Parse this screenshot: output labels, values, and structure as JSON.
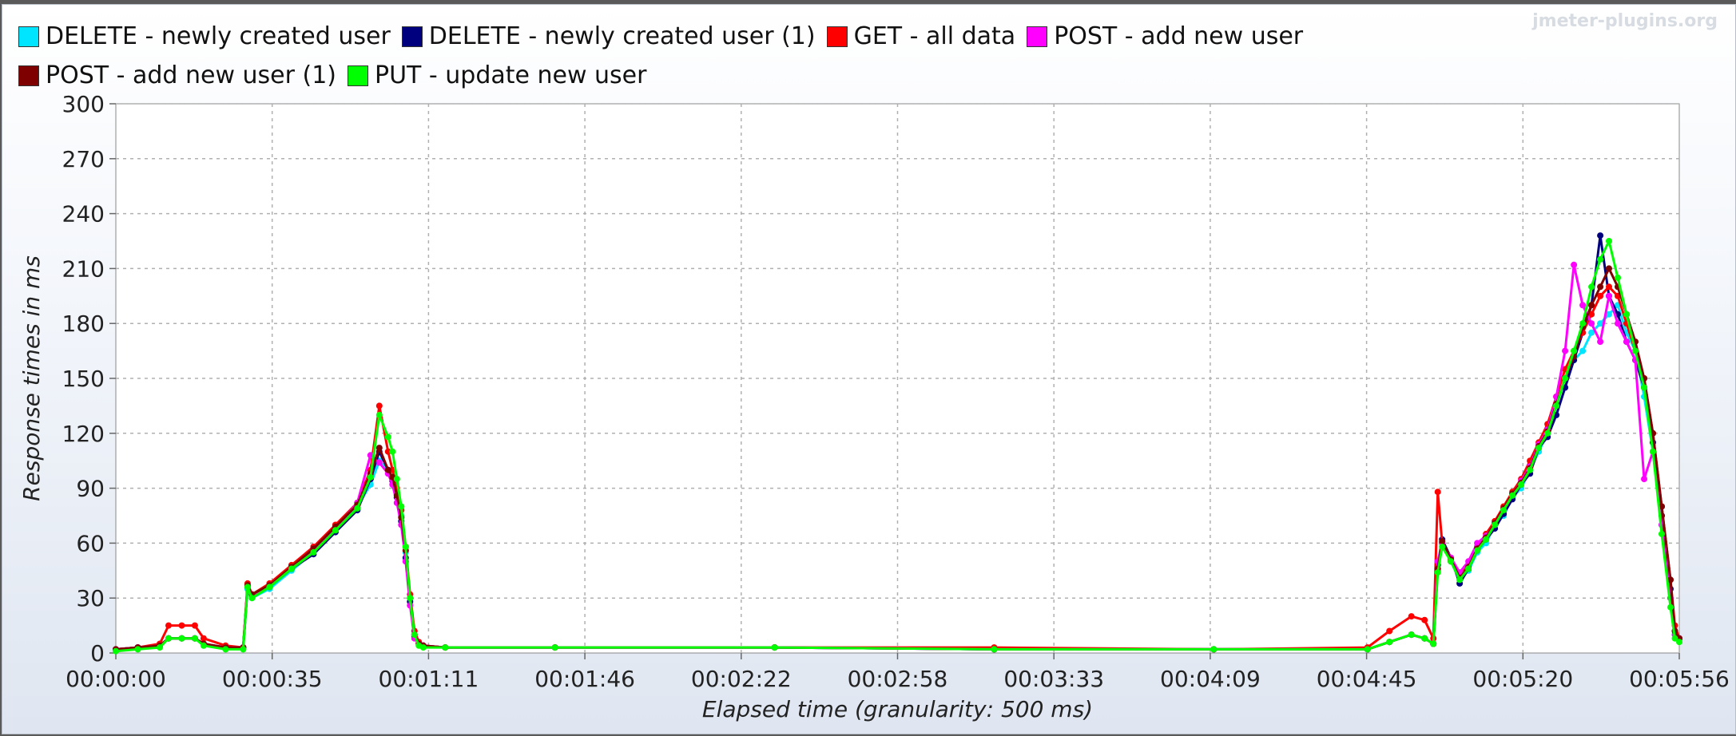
{
  "watermark": "jmeter-plugins.org",
  "chart_data": {
    "type": "line",
    "xlabel": "Elapsed time (granularity: 500 ms)",
    "ylabel": "Response times in ms",
    "x_unit": "seconds elapsed",
    "xlim": [
      0,
      356
    ],
    "ylim": [
      0,
      300
    ],
    "y_ticks": [
      0,
      30,
      60,
      90,
      120,
      150,
      180,
      210,
      240,
      270,
      300
    ],
    "x_ticks": [
      {
        "label": "00:00:00",
        "value": 0
      },
      {
        "label": "00:00:35",
        "value": 35.6
      },
      {
        "label": "00:01:11",
        "value": 71.2
      },
      {
        "label": "00:01:46",
        "value": 106.8
      },
      {
        "label": "00:02:22",
        "value": 142.4
      },
      {
        "label": "00:02:58",
        "value": 178
      },
      {
        "label": "00:03:33",
        "value": 213.6
      },
      {
        "label": "00:04:09",
        "value": 249.2
      },
      {
        "label": "00:04:45",
        "value": 284.8
      },
      {
        "label": "00:05:20",
        "value": 320.4
      },
      {
        "label": "00:05:56",
        "value": 356
      }
    ],
    "grid": true,
    "legend_position": "top",
    "series": [
      {
        "name": "DELETE - newly created user",
        "color": "#00e5ff",
        "x": [
          0,
          5,
          10,
          12,
          15,
          18,
          20,
          25,
          29,
          30,
          31,
          35,
          40,
          45,
          50,
          55,
          58,
          60,
          62,
          63,
          64,
          65,
          66,
          67,
          68,
          69,
          70,
          75,
          100,
          150,
          200,
          250,
          285,
          290,
          295,
          298,
          300,
          301,
          302,
          304,
          306,
          308,
          310,
          312,
          314,
          316,
          318,
          320,
          322,
          324,
          326,
          328,
          330,
          332,
          334,
          336,
          338,
          340,
          342,
          344,
          346,
          348,
          350,
          352,
          354,
          355,
          356
        ],
        "y": [
          2,
          3,
          4,
          8,
          8,
          8,
          5,
          3,
          3,
          35,
          30,
          35,
          45,
          55,
          68,
          80,
          92,
          105,
          100,
          95,
          85,
          75,
          55,
          30,
          10,
          5,
          4,
          3,
          3,
          3,
          2,
          2,
          2,
          6,
          10,
          8,
          5,
          45,
          60,
          50,
          40,
          45,
          55,
          60,
          70,
          75,
          85,
          90,
          100,
          110,
          120,
          135,
          150,
          160,
          165,
          175,
          180,
          185,
          190,
          175,
          165,
          140,
          110,
          70,
          30,
          10,
          8
        ]
      },
      {
        "name": "DELETE - newly created user (1)",
        "color": "#00007f",
        "x": [
          0,
          5,
          10,
          12,
          15,
          18,
          20,
          25,
          29,
          30,
          31,
          35,
          40,
          45,
          50,
          55,
          58,
          60,
          62,
          63,
          64,
          65,
          66,
          67,
          68,
          69,
          70,
          75,
          100,
          150,
          200,
          250,
          285,
          290,
          295,
          298,
          300,
          301,
          302,
          304,
          306,
          308,
          310,
          312,
          314,
          316,
          318,
          320,
          322,
          324,
          326,
          328,
          330,
          332,
          334,
          336,
          338,
          340,
          342,
          344,
          346,
          348,
          350,
          352,
          354,
          355,
          356
        ],
        "y": [
          2,
          3,
          4,
          8,
          8,
          8,
          5,
          3,
          3,
          36,
          31,
          36,
          46,
          54,
          66,
          78,
          95,
          110,
          100,
          94,
          85,
          72,
          52,
          28,
          9,
          5,
          4,
          3,
          3,
          3,
          2,
          2,
          2,
          6,
          10,
          8,
          5,
          48,
          62,
          52,
          38,
          46,
          56,
          62,
          68,
          76,
          84,
          92,
          98,
          112,
          118,
          130,
          145,
          160,
          175,
          190,
          228,
          195,
          185,
          170,
          160,
          145,
          115,
          75,
          35,
          12,
          8
        ]
      },
      {
        "name": "GET - all data",
        "color": "#ff0000",
        "x": [
          0,
          5,
          10,
          12,
          15,
          18,
          20,
          25,
          29,
          30,
          31,
          35,
          40,
          45,
          50,
          55,
          58,
          60,
          62,
          63,
          64,
          65,
          66,
          67,
          68,
          69,
          70,
          75,
          100,
          150,
          200,
          250,
          285,
          290,
          295,
          298,
          300,
          301,
          302,
          304,
          306,
          308,
          310,
          312,
          314,
          316,
          318,
          320,
          322,
          324,
          326,
          328,
          330,
          332,
          334,
          336,
          338,
          340,
          342,
          344,
          346,
          348,
          350,
          352,
          354,
          355,
          356
        ],
        "y": [
          2,
          3,
          5,
          15,
          15,
          15,
          8,
          4,
          3,
          38,
          32,
          38,
          48,
          58,
          70,
          82,
          100,
          135,
          110,
          100,
          90,
          78,
          58,
          32,
          12,
          6,
          4,
          3,
          3,
          3,
          3,
          2,
          3,
          12,
          20,
          18,
          8,
          88,
          60,
          50,
          42,
          48,
          58,
          65,
          72,
          80,
          88,
          95,
          105,
          115,
          125,
          140,
          155,
          165,
          175,
          185,
          195,
          200,
          195,
          180,
          165,
          150,
          120,
          80,
          40,
          15,
          8
        ]
      },
      {
        "name": "POST - add new user",
        "color": "#ff00ff",
        "x": [
          0,
          5,
          10,
          12,
          15,
          18,
          20,
          25,
          29,
          30,
          31,
          35,
          40,
          45,
          50,
          55,
          58,
          60,
          62,
          63,
          64,
          65,
          66,
          67,
          68,
          69,
          70,
          75,
          100,
          150,
          200,
          250,
          285,
          290,
          295,
          298,
          300,
          301,
          302,
          304,
          306,
          308,
          310,
          312,
          314,
          316,
          318,
          320,
          322,
          324,
          326,
          328,
          330,
          332,
          334,
          336,
          338,
          340,
          342,
          344,
          346,
          348,
          350,
          352,
          354,
          355,
          356
        ],
        "y": [
          2,
          3,
          4,
          8,
          8,
          8,
          5,
          3,
          3,
          36,
          31,
          37,
          47,
          56,
          68,
          82,
          108,
          104,
          98,
          92,
          82,
          70,
          50,
          26,
          8,
          5,
          4,
          3,
          3,
          3,
          2,
          2,
          2,
          6,
          10,
          8,
          5,
          50,
          60,
          52,
          44,
          50,
          60,
          64,
          70,
          78,
          86,
          94,
          102,
          114,
          122,
          140,
          165,
          212,
          190,
          180,
          170,
          195,
          180,
          170,
          160,
          95,
          110,
          70,
          30,
          10,
          8
        ]
      },
      {
        "name": "POST - add new user (1)",
        "color": "#7f0000",
        "x": [
          0,
          5,
          10,
          12,
          15,
          18,
          20,
          25,
          29,
          30,
          31,
          35,
          40,
          45,
          50,
          55,
          58,
          60,
          62,
          63,
          64,
          65,
          66,
          67,
          68,
          69,
          70,
          75,
          100,
          150,
          200,
          250,
          285,
          290,
          295,
          298,
          300,
          301,
          302,
          304,
          306,
          308,
          310,
          312,
          314,
          316,
          318,
          320,
          322,
          324,
          326,
          328,
          330,
          332,
          334,
          336,
          338,
          340,
          342,
          344,
          346,
          348,
          350,
          352,
          354,
          355,
          356
        ],
        "y": [
          2,
          3,
          4,
          8,
          8,
          8,
          5,
          3,
          3,
          37,
          32,
          37,
          47,
          57,
          69,
          81,
          98,
          112,
          100,
          96,
          86,
          74,
          56,
          30,
          10,
          5,
          4,
          3,
          3,
          3,
          2,
          2,
          2,
          6,
          10,
          8,
          5,
          46,
          61,
          51,
          41,
          47,
          57,
          63,
          71,
          79,
          87,
          93,
          101,
          113,
          121,
          136,
          150,
          162,
          178,
          190,
          200,
          210,
          200,
          185,
          170,
          150,
          120,
          80,
          40,
          12,
          8
        ]
      },
      {
        "name": "PUT - update new user",
        "color": "#00ff00",
        "x": [
          0,
          5,
          10,
          12,
          15,
          18,
          20,
          25,
          29,
          30,
          31,
          35,
          40,
          45,
          50,
          55,
          58,
          60,
          62,
          63,
          64,
          65,
          66,
          67,
          68,
          69,
          70,
          75,
          100,
          150,
          200,
          250,
          285,
          290,
          295,
          298,
          300,
          301,
          302,
          304,
          306,
          308,
          310,
          312,
          314,
          316,
          318,
          320,
          322,
          324,
          326,
          328,
          330,
          332,
          334,
          336,
          338,
          340,
          342,
          344,
          346,
          348,
          350,
          352,
          354,
          355,
          356
        ],
        "y": [
          1,
          2,
          3,
          8,
          8,
          8,
          4,
          2,
          2,
          36,
          30,
          36,
          46,
          55,
          67,
          79,
          96,
          130,
          118,
          110,
          95,
          80,
          58,
          30,
          10,
          4,
          3,
          3,
          3,
          3,
          2,
          2,
          2,
          6,
          10,
          8,
          5,
          44,
          58,
          50,
          40,
          46,
          56,
          62,
          70,
          78,
          86,
          92,
          100,
          112,
          120,
          135,
          150,
          165,
          180,
          200,
          215,
          225,
          205,
          185,
          165,
          145,
          110,
          65,
          25,
          8,
          6
        ]
      }
    ]
  }
}
